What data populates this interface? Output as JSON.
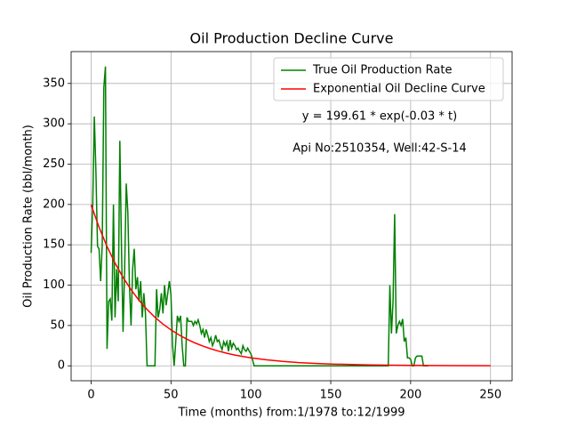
{
  "chart_data": {
    "type": "line",
    "title": "Oil Production Decline Curve",
    "xlabel": "Time (months) from:1/1978 to:12/1999",
    "ylabel": "Oil Production Rate (bbl/month)",
    "annotations": [
      "y = 199.61 * exp(-0.03 * t)",
      "Api No:2510354, Well:42-S-14"
    ],
    "xlim": [
      -12.5,
      263.5
    ],
    "ylim": [
      -18.5,
      389.5
    ],
    "xticks": [
      0,
      50,
      100,
      150,
      200,
      250
    ],
    "yticks": [
      0,
      50,
      100,
      150,
      200,
      250,
      300,
      350
    ],
    "grid": true,
    "legend": "upper right",
    "series": [
      {
        "name": "True Oil Production Rate",
        "color": "#008000",
        "x": [
          0,
          1,
          2,
          3,
          4,
          5,
          6,
          7,
          8,
          9,
          10,
          11,
          12,
          13,
          14,
          15,
          16,
          17,
          18,
          19,
          20,
          21,
          22,
          23,
          24,
          25,
          26,
          27,
          28,
          29,
          30,
          31,
          32,
          33,
          34,
          35,
          40,
          41,
          42,
          43,
          44,
          45,
          46,
          47,
          48,
          49,
          50,
          51,
          52,
          53,
          54,
          55,
          56,
          57,
          58,
          59,
          60,
          61,
          62,
          63,
          64,
          65,
          66,
          67,
          68,
          69,
          70,
          71,
          72,
          73,
          74,
          75,
          76,
          77,
          78,
          79,
          80,
          81,
          82,
          83,
          84,
          85,
          86,
          87,
          88,
          89,
          90,
          91,
          92,
          93,
          94,
          95,
          96,
          97,
          98,
          99,
          100,
          101,
          102,
          186,
          187,
          188,
          189,
          190,
          191,
          192,
          193,
          194,
          195,
          196,
          197,
          198,
          199,
          200,
          201,
          202,
          203,
          204,
          205,
          206,
          207,
          208,
          211
        ],
        "values": [
          140,
          200,
          309,
          240,
          148,
          145,
          105,
          150,
          345,
          371,
          21,
          80,
          83,
          56,
          200,
          60,
          120,
          80,
          279,
          150,
          42,
          120,
          226,
          190,
          100,
          50,
          120,
          145,
          95,
          110,
          80,
          105,
          60,
          90,
          65,
          0,
          0,
          95,
          60,
          70,
          90,
          65,
          100,
          75,
          90,
          105,
          88,
          25,
          0,
          30,
          62,
          55,
          62,
          25,
          0,
          0,
          60,
          55,
          55,
          55,
          50,
          55,
          52,
          57,
          50,
          40,
          45,
          35,
          45,
          38,
          30,
          35,
          25,
          30,
          38,
          30,
          32,
          25,
          20,
          30,
          25,
          30,
          18,
          32,
          22,
          28,
          25,
          20,
          22,
          18,
          15,
          25,
          20,
          18,
          22,
          18,
          15,
          8,
          0,
          0,
          100,
          40,
          80,
          188,
          40,
          50,
          55,
          50,
          58,
          30,
          35,
          10,
          10,
          8,
          0,
          0,
          10,
          12,
          12,
          12,
          12,
          0,
          0
        ]
      },
      {
        "name": "Exponential Oil Decline Curve",
        "color": "#ff0000",
        "x": [
          0,
          5,
          10,
          15,
          20,
          25,
          30,
          35,
          40,
          45,
          50,
          55,
          60,
          65,
          70,
          75,
          80,
          85,
          90,
          95,
          100,
          110,
          120,
          130,
          140,
          150,
          175,
          200,
          225,
          250
        ],
        "values": [
          199.61,
          171.81,
          147.87,
          127.28,
          109.55,
          94.29,
          81.16,
          69.85,
          60.12,
          51.75,
          44.54,
          38.34,
          33.0,
          28.4,
          24.44,
          21.04,
          18.11,
          15.59,
          13.42,
          11.55,
          9.94,
          7.36,
          5.46,
          4.04,
          2.99,
          2.22,
          1.05,
          0.49,
          0.23,
          0.11
        ]
      }
    ]
  }
}
